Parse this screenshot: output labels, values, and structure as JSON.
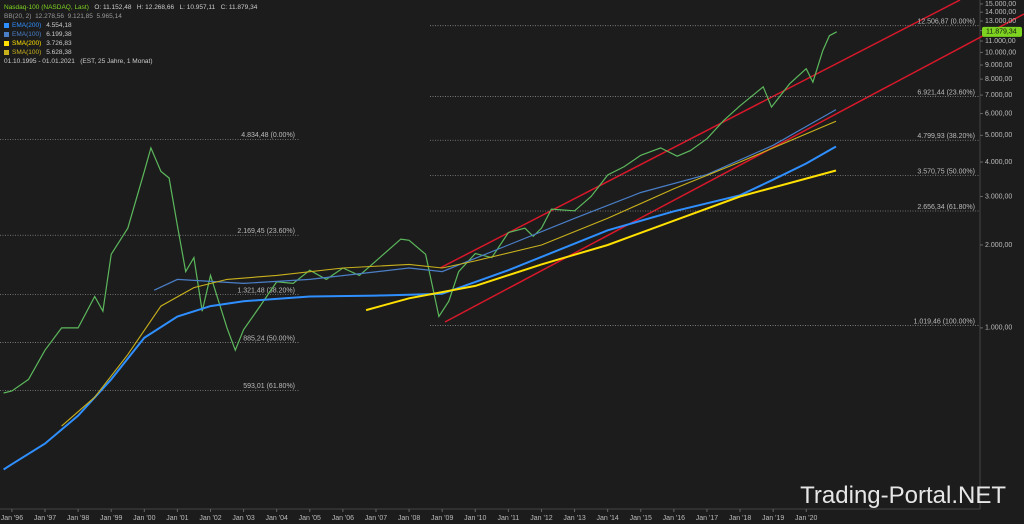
{
  "header": {
    "instrument": "Nasdaq-100 (NASDAQ, Last)",
    "ohlc": "O: 11.152,48   H: 12.268,66   L: 10.957,11   C: 11.879,34",
    "bb": "BB(20, 2)  12.278,56  9.121,85  5.965,14",
    "period": "01.10.1995 - 01.01.2021   (EST, 25 Jahre, 1 Monat)"
  },
  "watermark": "Trading-Portal.NET",
  "chart_data": {
    "type": "line",
    "log_scale": true,
    "xlim": [
      1995.64,
      2025.25
    ],
    "ylim": [
      220,
      15500
    ],
    "xticks": [
      {
        "value": 1996,
        "label": "Jan '96"
      },
      {
        "value": 1997,
        "label": "Jan '97"
      },
      {
        "value": 1998,
        "label": "Jan '98"
      },
      {
        "value": 1999,
        "label": "Jan '99"
      },
      {
        "value": 2000,
        "label": "Jan '00"
      },
      {
        "value": 2001,
        "label": "Jan '01"
      },
      {
        "value": 2002,
        "label": "Jan '02"
      },
      {
        "value": 2003,
        "label": "Jan '03"
      },
      {
        "value": 2004,
        "label": "Jan '04"
      },
      {
        "value": 2005,
        "label": "Jan '05"
      },
      {
        "value": 2006,
        "label": "Jan '06"
      },
      {
        "value": 2007,
        "label": "Jan '07"
      },
      {
        "value": 2008,
        "label": "Jan '08"
      },
      {
        "value": 2009,
        "label": "Jan '09"
      },
      {
        "value": 2010,
        "label": "Jan '10"
      },
      {
        "value": 2011,
        "label": "Jan '11"
      },
      {
        "value": 2012,
        "label": "Jan '12"
      },
      {
        "value": 2013,
        "label": "Jan '13"
      },
      {
        "value": 2014,
        "label": "Jan '14"
      },
      {
        "value": 2015,
        "label": "Jan '15"
      },
      {
        "value": 2016,
        "label": "Jan '16"
      },
      {
        "value": 2017,
        "label": "Jan '17"
      },
      {
        "value": 2018,
        "label": "Jan '18"
      },
      {
        "value": 2019,
        "label": "Jan '19"
      },
      {
        "value": 2020,
        "label": "Jan '20"
      }
    ],
    "yticks": [
      {
        "value": 1000,
        "label": "1.000,00"
      },
      {
        "value": 2000,
        "label": "2.000,00"
      },
      {
        "value": 3000,
        "label": "3.000,00"
      },
      {
        "value": 4000,
        "label": "4.000,00"
      },
      {
        "value": 5000,
        "label": "5.000,00"
      },
      {
        "value": 6000,
        "label": "6.000,00"
      },
      {
        "value": 7000,
        "label": "7.000,00"
      },
      {
        "value": 8000,
        "label": "8.000,00"
      },
      {
        "value": 9000,
        "label": "9.000,00"
      },
      {
        "value": 10000,
        "label": "10.000,00"
      },
      {
        "value": 11000,
        "label": "11.000,00"
      },
      {
        "value": 12000,
        "label": "12.000,00"
      },
      {
        "value": 13000,
        "label": "13.000,00"
      },
      {
        "value": 14000,
        "label": "14.000,00"
      },
      {
        "value": 15000,
        "label": "15.000,00"
      }
    ],
    "last_price": {
      "value": 11879.34,
      "label": "11.879,34",
      "color": "#7ed321"
    },
    "series": [
      {
        "name": "Nasdaq-100",
        "color": "#5cb85c",
        "width": 1.2,
        "x": [
          1995.75,
          1996,
          1996.5,
          1997,
          1997.5,
          1998,
          1998.5,
          1998.75,
          1999,
          1999.5,
          2000,
          2000.2,
          2000.5,
          2000.75,
          2001,
          2001.25,
          2001.5,
          2001.75,
          2002,
          2002.5,
          2002.75,
          2003,
          2003.5,
          2004,
          2004.5,
          2005,
          2005.5,
          2006,
          2006.5,
          2007,
          2007.75,
          2008,
          2008.5,
          2008.9,
          2009.2,
          2009.5,
          2010,
          2010.5,
          2011,
          2011.5,
          2011.75,
          2012,
          2012.3,
          2013,
          2013.5,
          2014,
          2014.5,
          2015,
          2015.6,
          2016.1,
          2016.5,
          2017,
          2017.5,
          2018,
          2018.7,
          2018.95,
          2019.5,
          2020,
          2020.2,
          2020.5,
          2020.7,
          2020.92
        ],
        "values": [
          580,
          590,
          650,
          830,
          1000,
          1000,
          1300,
          1150,
          1850,
          2300,
          3700,
          4500,
          3700,
          3500,
          2350,
          1600,
          1800,
          1150,
          1550,
          1000,
          830,
          985,
          1200,
          1470,
          1450,
          1620,
          1500,
          1650,
          1550,
          1750,
          2100,
          2080,
          1850,
          1100,
          1250,
          1600,
          1860,
          1800,
          2220,
          2300,
          2150,
          2300,
          2700,
          2660,
          3000,
          3590,
          3850,
          4230,
          4500,
          4200,
          4400,
          4860,
          5650,
          6400,
          7500,
          6330,
          7700,
          8730,
          7800,
          10150,
          11500,
          11879.34
        ]
      },
      {
        "name": "EMA(200)",
        "legend_value": "4.554,18",
        "color": "#2f8fff",
        "width": 2,
        "x": [
          1995.75,
          1996,
          1997,
          1998,
          1999,
          2000,
          2001,
          2002,
          2003,
          2005,
          2007,
          2008,
          2009,
          2011,
          2014,
          2016,
          2018,
          2019,
          2020,
          2020.9
        ],
        "values": [
          306,
          320,
          380,
          480,
          650,
          920,
          1100,
          1200,
          1250,
          1300,
          1310,
          1320,
          1330,
          1620,
          2260,
          2650,
          3030,
          3450,
          3950,
          4554.18
        ]
      },
      {
        "name": "EMA(100)",
        "legend_value": "6.199,38",
        "color": "#4a7fc8",
        "width": 1.2,
        "x": [
          2000.3,
          2001,
          2003,
          2005,
          2008,
          2009,
          2011,
          2013,
          2015,
          2017,
          2019,
          2020.9
        ],
        "values": [
          1370,
          1500,
          1450,
          1500,
          1650,
          1600,
          2000,
          2500,
          3100,
          3600,
          4600,
          6199.38
        ]
      },
      {
        "name": "SMA(200)",
        "legend_value": "3.726,83",
        "color": "#ffe000",
        "width": 2,
        "x": [
          2006.7,
          2008,
          2010,
          2012,
          2014,
          2016,
          2018,
          2020.9
        ],
        "values": [
          1160,
          1280,
          1420,
          1700,
          2000,
          2450,
          3000,
          3726.83
        ]
      },
      {
        "name": "SMA(100)",
        "legend_value": "5.628,38",
        "color": "#c9b11c",
        "width": 1.1,
        "x": [
          1997.5,
          1998.5,
          1999.5,
          2000.5,
          2001.5,
          2002.5,
          2004,
          2006,
          2008,
          2009,
          2010,
          2012,
          2014,
          2016,
          2018,
          2020.9
        ],
        "values": [
          440,
          560,
          800,
          1200,
          1400,
          1500,
          1550,
          1650,
          1700,
          1650,
          1750,
          2000,
          2500,
          3200,
          4000,
          5628.38
        ]
      }
    ],
    "fib_left": [
      {
        "value": 4834.48,
        "label": "4.834,48 (0.00%)"
      },
      {
        "value": 2169.45,
        "label": "2.169,45 (23.60%)"
      },
      {
        "value": 1321.48,
        "label": "1.321,48 (38.20%)"
      },
      {
        "value": 885.24,
        "label": "885,24 (50.00%)"
      },
      {
        "value": 593.01,
        "label": "593,01 (61.80%)"
      }
    ],
    "fib_right": [
      {
        "value": 12506.87,
        "label": "12.506,87 (0.00%)"
      },
      {
        "value": 6921.44,
        "label": "6.921,44 (23.60%)"
      },
      {
        "value": 4799.93,
        "label": "4.799,93 (38.20%)"
      },
      {
        "value": 3570.75,
        "label": "3.570,75 (50.00%)"
      },
      {
        "value": 2656.34,
        "label": "2.656,34 (61.80%)"
      },
      {
        "value": 1019.46,
        "label": "1.019,46 (100.00%)"
      }
    ]
  }
}
